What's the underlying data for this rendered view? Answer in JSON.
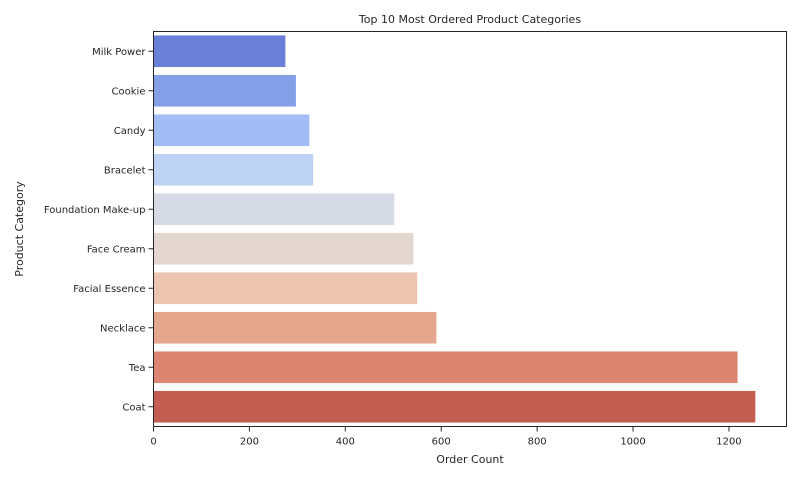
{
  "chart_data": {
    "type": "bar",
    "orientation": "horizontal",
    "title": "Top 10 Most Ordered Product Categories",
    "xlabel": "Order Count",
    "ylabel": "Product Category",
    "xlim": [
      0,
      1320
    ],
    "xticks": [
      0,
      200,
      400,
      600,
      800,
      1000,
      1200
    ],
    "grid": false,
    "categories": [
      "Milk Power",
      "Cookie",
      "Candy",
      "Bracelet",
      "Foundation Make-up",
      "Face Cream",
      "Facial Essence",
      "Necklace",
      "Tea",
      "Coat"
    ],
    "values": [
      275,
      297,
      325,
      333,
      502,
      542,
      550,
      590,
      1218,
      1255
    ],
    "colors": [
      "#6a7fd8",
      "#849fe8",
      "#a2bcf5",
      "#bed2f4",
      "#d5dae5",
      "#e3d7cf",
      "#ecc4b0",
      "#e6a78f",
      "#dc8672",
      "#c55e52"
    ]
  }
}
